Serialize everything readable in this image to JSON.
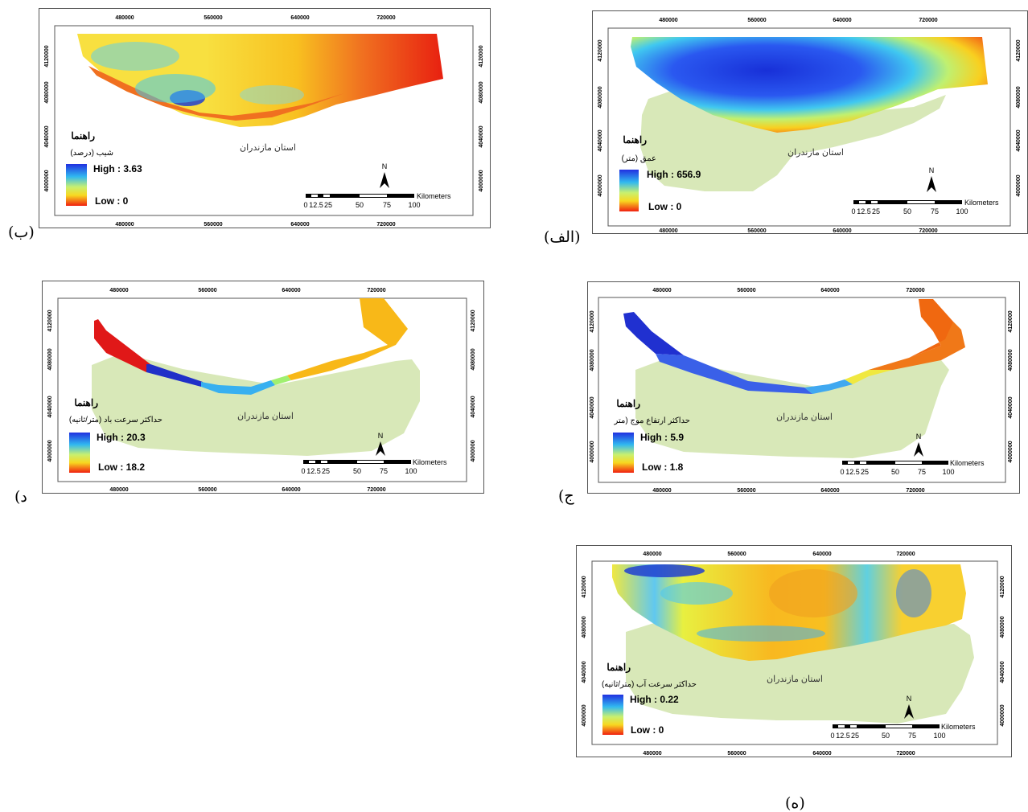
{
  "common": {
    "x_ticks": [
      "480000",
      "560000",
      "640000",
      "720000"
    ],
    "y_ticks": [
      "4120000",
      "4080000",
      "4040000",
      "4000000"
    ],
    "province_label": "استان مازندران",
    "legend_title": "راهنما",
    "north_label": "N",
    "scale_unit": "Kilometers",
    "scale_ticks": [
      "0",
      "12.5",
      "25",
      "50",
      "75",
      "100"
    ]
  },
  "maps": [
    {
      "id": "alef",
      "caption": "(الف)",
      "legend_subtitle": "عمق (متر)",
      "high": "High : 656.9",
      "low": "Low : 0"
    },
    {
      "id": "be",
      "caption": "(ب)",
      "legend_subtitle": "شیب (درصد)",
      "high": "High : 3.63",
      "low": "Low : 0"
    },
    {
      "id": "jim",
      "caption": "(ج",
      "legend_subtitle": "حداکثر ارتفاع موج (متر",
      "high": "High : 5.9",
      "low": "Low : 1.8"
    },
    {
      "id": "dal",
      "caption": "(د",
      "legend_subtitle": "حداکثر سرعت باد (متر/ثانیه)",
      "high": "High : 20.3",
      "low": "Low : 18.2"
    },
    {
      "id": "he",
      "caption": "(ه)",
      "legend_subtitle": "حداکثر سرعت آب (متر/ثانیه)",
      "high": "High : 0.22",
      "low": "Low : 0"
    }
  ]
}
